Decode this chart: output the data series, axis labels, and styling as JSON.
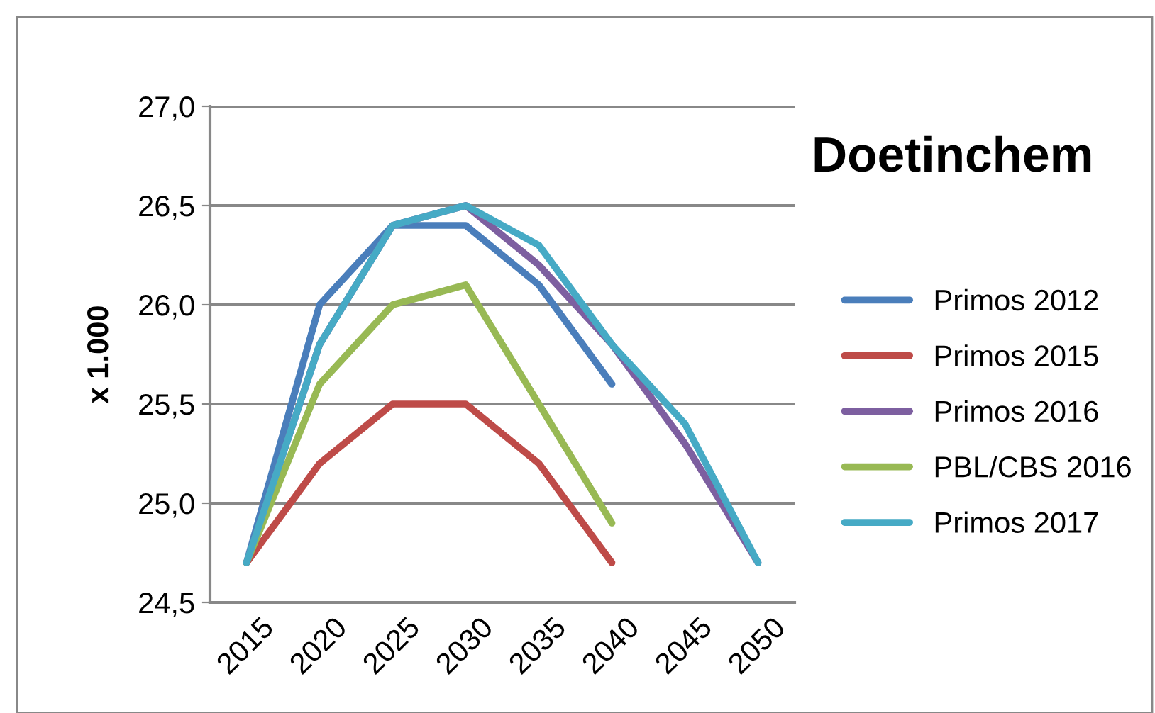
{
  "chart_data": {
    "type": "line",
    "title": "Doetinchem",
    "ylabel": "x 1.000",
    "categories": [
      "2015",
      "2020",
      "2025",
      "2030",
      "2035",
      "2040",
      "2045",
      "2050"
    ],
    "series": [
      {
        "name": "Primos 2012",
        "color": "#4a7ebb",
        "values": [
          24.7,
          26.0,
          26.4,
          26.4,
          26.1,
          25.6,
          null,
          null
        ]
      },
      {
        "name": "Primos 2015",
        "color": "#be4b48",
        "values": [
          24.7,
          25.2,
          25.5,
          25.5,
          25.2,
          24.7,
          null,
          null
        ]
      },
      {
        "name": "Primos 2016",
        "color": "#7d5fa0",
        "values": [
          24.7,
          25.8,
          26.4,
          26.5,
          26.2,
          25.8,
          25.3,
          24.7
        ]
      },
      {
        "name": "PBL/CBS 2016",
        "color": "#98b954",
        "values": [
          24.7,
          25.6,
          26.0,
          26.1,
          25.5,
          24.9,
          null,
          null
        ]
      },
      {
        "name": "Primos 2017",
        "color": "#46aac5",
        "values": [
          24.7,
          25.8,
          26.4,
          26.5,
          26.3,
          25.8,
          25.4,
          24.7
        ]
      }
    ],
    "ylim": [
      24.5,
      27.0
    ],
    "yticks": [
      {
        "value": 24.5,
        "label": "24,5"
      },
      {
        "value": 25.0,
        "label": "25,0"
      },
      {
        "value": 25.5,
        "label": "25,5"
      },
      {
        "value": 26.0,
        "label": "26,0"
      },
      {
        "value": 26.5,
        "label": "26,5"
      },
      {
        "value": 27.0,
        "label": "27,0"
      }
    ],
    "grid": "y",
    "legend": "right",
    "marker": "none",
    "line_style": "solid"
  }
}
